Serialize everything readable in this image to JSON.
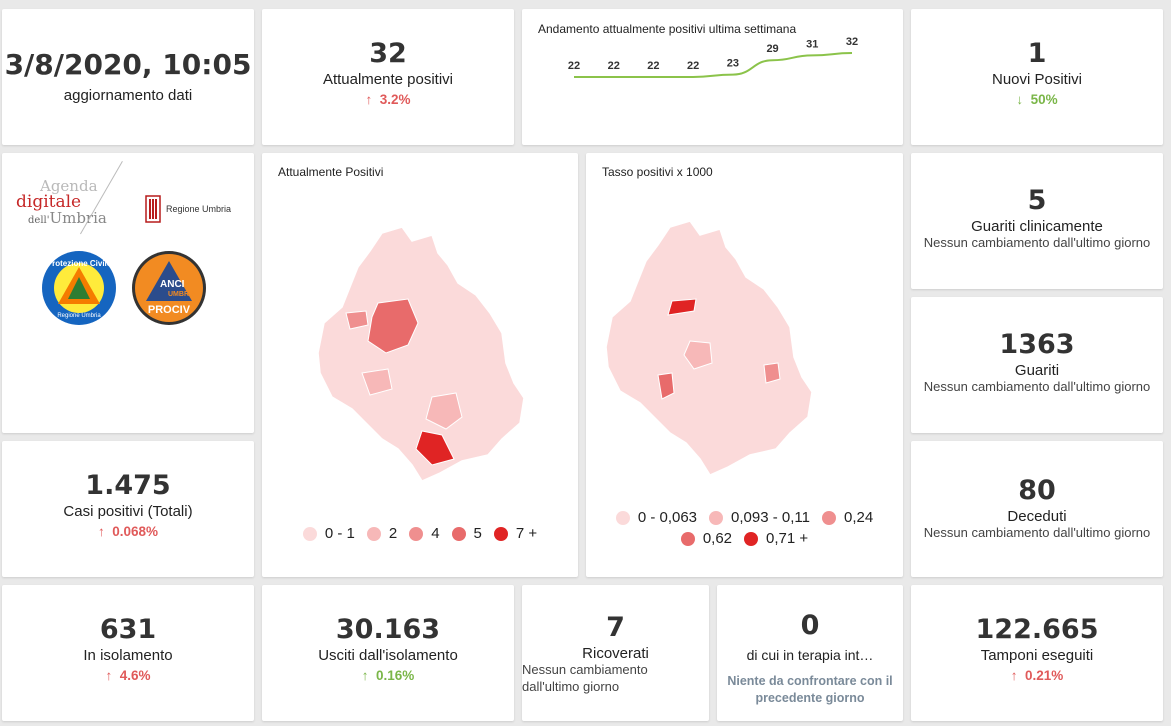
{
  "update": {
    "datetime": "3/8/2020, 10:05",
    "label": "aggiornamento dati"
  },
  "positivi": {
    "value": "32",
    "label": "Attualmente positivi",
    "arrow": "↑",
    "change": "3.2%"
  },
  "trend": {
    "title": "Andamento attualmente positivi ultima settimana",
    "points": [
      "22",
      "22",
      "22",
      "22",
      "23",
      "29",
      "31",
      "32"
    ],
    "values": [
      22,
      22,
      22,
      22,
      23,
      29,
      31,
      32
    ],
    "color": "#8bc34a"
  },
  "nuovi": {
    "value": "1",
    "label": "Nuovi Positivi",
    "arrow": "↓",
    "change": "50%"
  },
  "logos": {
    "agenda_line1": "Agenda",
    "agenda_line2": "digitale",
    "agenda_line3a": "dell'",
    "agenda_line3b": "Umbria",
    "regione": "Regione Umbria",
    "protezione": "Protezione Civile",
    "protezione_sub": "Regione Umbria",
    "anci": "ANCI",
    "anci_sub": "UMBRIA",
    "prociv": "PROCIV"
  },
  "map1": {
    "title": "Attualmente Positivi",
    "legend": [
      {
        "label": "0 - 1",
        "color": "#fbdada"
      },
      {
        "label": "2",
        "color": "#f7b8b8"
      },
      {
        "label": "4",
        "color": "#ef8f8f"
      },
      {
        "label": "5",
        "color": "#e86b6b"
      },
      {
        "label": "7 +",
        "color": "#e02424"
      }
    ]
  },
  "map2": {
    "title": "Tasso positivi x 1000",
    "legend": [
      {
        "label": "0 - 0,063",
        "color": "#fbdada"
      },
      {
        "label": "0,093 - 0,11",
        "color": "#f7b8b8"
      },
      {
        "label": "0,24",
        "color": "#ef8f8f"
      },
      {
        "label": "0,62",
        "color": "#e86b6b"
      },
      {
        "label": "0,71 +",
        "color": "#e02424"
      }
    ]
  },
  "guariti_clin": {
    "value": "5",
    "label": "Guariti clinicamente",
    "sub": "Nessun cambiamento dall'ultimo giorno"
  },
  "guariti": {
    "value": "1363",
    "label": "Guariti",
    "sub": "Nessun cambiamento dall'ultimo giorno"
  },
  "casi": {
    "value": "1.475",
    "label": "Casi positivi (Totali)",
    "arrow": "↑",
    "change": "0.068%"
  },
  "deceduti": {
    "value": "80",
    "label": "Deceduti",
    "sub": "Nessun cambiamento dall'ultimo giorno"
  },
  "isolamento": {
    "value": "631",
    "label": "In isolamento",
    "arrow": "↑",
    "change": "4.6%"
  },
  "usciti": {
    "value": "30.163",
    "label": "Usciti dall'isolamento",
    "arrow": "↑",
    "change": "0.16%"
  },
  "ricoverati": {
    "value": "7",
    "label": "Ricoverati",
    "sub1": "Nessun cambiamento",
    "sub2": "dall'ultimo giorno"
  },
  "terapia": {
    "value": "0",
    "label": "di cui in terapia int…",
    "sub1": "Niente da confrontare con il",
    "sub2": "precedente giorno"
  },
  "tamponi": {
    "value": "122.665",
    "label": "Tamponi eseguiti",
    "arrow": "↑",
    "change": "0.21%"
  }
}
